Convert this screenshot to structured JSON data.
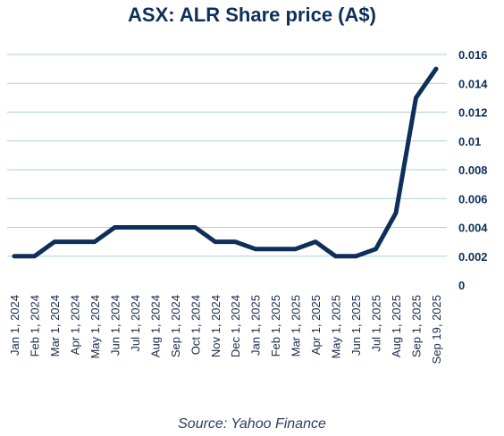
{
  "chart_data": {
    "type": "line",
    "title": "ASX: ALR Share price (A$)",
    "source": "Source: Yahoo Finance",
    "xlabel": "",
    "ylabel": "",
    "ylim": [
      0,
      0.016
    ],
    "y_ticks": [
      "0",
      "0.002",
      "0.004",
      "0.006",
      "0.008",
      "0.01",
      "0.012",
      "0.014",
      "0.016"
    ],
    "y_tick_values": [
      0,
      0.002,
      0.004,
      0.006,
      0.008,
      0.01,
      0.012,
      0.014,
      0.016
    ],
    "grid": true,
    "y_axis_position": "right",
    "categories": [
      "Jan 1, 2024",
      "Feb 1, 2024",
      "Mar 1, 2024",
      "Apr 1, 2024",
      "May 1, 2024",
      "Jun 1, 2024",
      "Jul 1, 2024",
      "Aug 1, 2024",
      "Sep 1, 2024",
      "Oct 1, 2024",
      "Nov 1, 2024",
      "Dec 1, 2024",
      "Jan 1, 2025",
      "Feb 1, 2025",
      "Mar 1, 2025",
      "Apr 1, 2025",
      "May 1, 2025",
      "Jun 1, 2025",
      "Jul 1, 2025",
      "Aug 1, 2025",
      "Sep 1, 2025",
      "Sep 19, 2025"
    ],
    "series": [
      {
        "values": [
          0.002,
          0.002,
          0.003,
          0.003,
          0.003,
          0.004,
          0.004,
          0.004,
          0.004,
          0.004,
          0.003,
          0.003,
          0.0025,
          0.0025,
          0.0025,
          0.003,
          0.002,
          0.002,
          0.0025,
          0.005,
          0.013,
          0.015
        ],
        "color": "#0d2f5a"
      }
    ],
    "colors": {
      "line": "#0d2f5a",
      "grid": "#a9d2dc",
      "title": "#0d2f5a"
    }
  }
}
